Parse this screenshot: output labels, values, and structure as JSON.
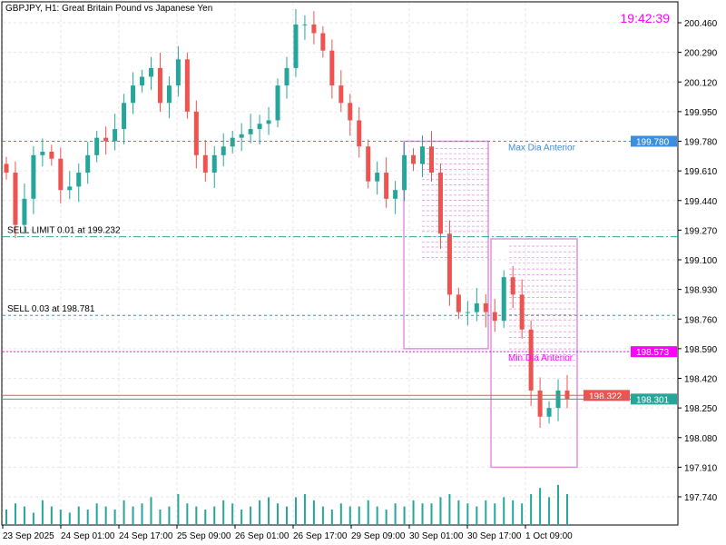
{
  "header": {
    "title": "GBPJPY, H1:  Great Britain Pound vs Japanese Yen",
    "clock": "19:42:39"
  },
  "colors": {
    "bull": "#26a69a",
    "bear": "#ef5350",
    "grid": "#e6e6e6",
    "box": "#e090e0",
    "max_line": "#3c8ee0",
    "min_line": "#ff00ff",
    "bid": "#26a69a",
    "ask": "#ef5350"
  },
  "lines": [
    {
      "name": "max-dia-anterior",
      "price": 199.78,
      "label": "Max Dia Anterior",
      "axis_label": "199.780",
      "color": "#3c8ee0",
      "style": "dashed"
    },
    {
      "name": "sell-limit",
      "price": 199.232,
      "label": "SELL LIMIT 0.01 at 199.232",
      "color": "#26a69a",
      "style": "dashdot"
    },
    {
      "name": "sell-position",
      "price": 198.781,
      "label": "SELL 0.03 at 198.781",
      "color": "#26a69a",
      "style": "dashed"
    },
    {
      "name": "min-dia-anterior",
      "price": 198.573,
      "label": "Min Dia Anterior",
      "axis_label": "198.573",
      "color": "#ff00ff",
      "style": "dotted"
    },
    {
      "name": "ask-line",
      "price": 198.322,
      "axis_label": "198.322",
      "color": "#ef5350",
      "style": "solid"
    },
    {
      "name": "bid-line",
      "price": 198.301,
      "axis_label": "198.301",
      "color": "#26a69a",
      "style": "solid"
    }
  ],
  "chart_data": {
    "type": "candlestick",
    "symbol": "GBPJPY",
    "timeframe": "H1",
    "ylim": [
      197.74,
      200.46
    ],
    "y_ticks": [
      "200.460",
      "200.290",
      "200.120",
      "199.950",
      "199.780",
      "199.610",
      "199.440",
      "199.270",
      "199.100",
      "198.930",
      "198.760",
      "198.590",
      "198.420",
      "198.250",
      "198.080",
      "197.910",
      "197.740"
    ],
    "x_ticks": [
      "23 Sep 2025",
      "24 Sep 01:00",
      "24 Sep 17:00",
      "25 Sep 09:00",
      "26 Sep 01:00",
      "26 Sep 17:00",
      "29 Sep 09:00",
      "30 Sep 01:00",
      "30 Sep 17:00",
      "1 Oct 09:00"
    ],
    "grid": true,
    "closes": [
      199.6,
      199.3,
      199.45,
      199.7,
      199.72,
      199.68,
      199.5,
      199.52,
      199.6,
      199.7,
      199.8,
      199.78,
      199.85,
      200.0,
      200.1,
      200.15,
      200.2,
      200.0,
      200.1,
      200.25,
      199.95,
      199.7,
      199.6,
      199.7,
      199.75,
      199.8,
      199.82,
      199.85,
      199.88,
      199.9,
      200.1,
      200.2,
      200.45,
      200.45,
      200.4,
      200.3,
      200.1,
      200.0,
      199.9,
      199.75,
      199.55,
      199.6,
      199.45,
      199.5,
      199.7,
      199.65,
      199.75,
      199.6,
      199.25,
      198.9,
      198.8,
      198.8,
      198.85,
      198.8,
      198.75,
      199.0,
      198.9,
      198.7,
      198.35,
      198.2,
      198.25,
      198.35,
      198.3
    ],
    "volumes": [
      5,
      7,
      6,
      4,
      8,
      6,
      5,
      4,
      6,
      5,
      7,
      6,
      5,
      8,
      6,
      7,
      9,
      5,
      6,
      10,
      7,
      6,
      5,
      6,
      8,
      7,
      5,
      6,
      8,
      9,
      7,
      6,
      9,
      10,
      8,
      6,
      5,
      7,
      6,
      6,
      8,
      6,
      5,
      7,
      6,
      8,
      7,
      7,
      9,
      10,
      8,
      7,
      6,
      8,
      7,
      9,
      8,
      7,
      10,
      12,
      9,
      13,
      10
    ],
    "boxes": [
      {
        "top": 199.78,
        "bottom": 198.59
      },
      {
        "top": 199.22,
        "bottom": 197.91
      }
    ]
  }
}
